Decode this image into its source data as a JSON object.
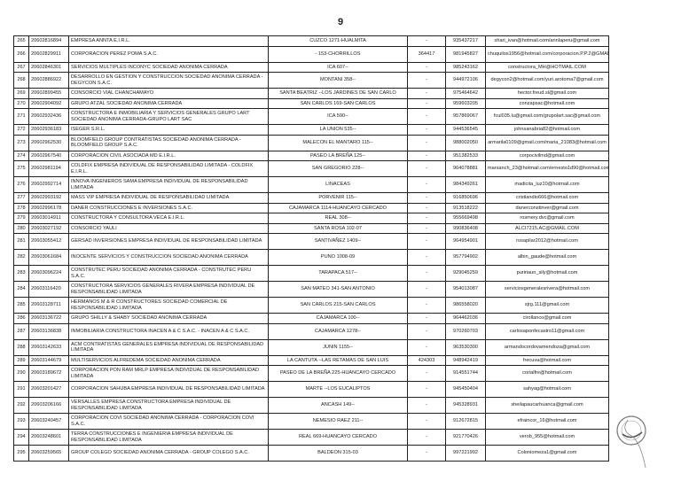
{
  "page_number": "9",
  "rows": [
    [
      "265",
      "20602816894",
      "EMPRESA ANNTA E.I.R.L.",
      "CUZCO 1271-HUALMITA",
      "-",
      "935437217",
      "shari_ivan@hotmail.com/annlaperu@gmail.com"
    ],
    [
      "266",
      "20602829911",
      "CORPORACION PEREZ POMA S.A.C.",
      "- 153-CHORRILLOS",
      "364417",
      "981945827",
      "chuquilos1956@hotmail.com/corporacion.P.P.2@GMAIL.COM"
    ],
    [
      "267",
      "20602846301",
      "SERVICIOS MULTIPLES INCONYC SOCIEDAD ANONIMA CERRADA",
      "ICA 607--",
      "-",
      "985243162",
      "constructora_MH@HOTMAIL.COM"
    ],
    [
      "268",
      "20602886922",
      "DESARROLLO EN GESTION Y CONSTRUCCION SOCIEDAD ANONIMA CERRADA - DEGYCON S.A.C.",
      "MONTANI 358--",
      "-",
      "944972106",
      "degycon2@hotmail.com/yuri.arotoma7@gmail.com"
    ],
    [
      "269",
      "20602899455",
      "CONSORCIO VIAL CHANCHAMAYO",
      "SANTA BEATRIZ --LOS JARDINES DE SAN CARLO",
      "-",
      "975464642",
      "hector.freud.sl@gmail.com"
    ],
    [
      "270",
      "20602904092",
      "GRUPO ATZAL SOCIEDAD ANONIMA CERRADA",
      "SAN CARLOS 169-SAN CARLOS",
      "-",
      "959603205",
      "conzapsac@hotmail.com"
    ],
    [
      "271",
      "20602932436",
      "CONSTRUCTORA E INMOBILIARIA Y SERVICIOS GENERALES GRUPO LART SOCIEDAD ANONIMA CERRADA-GRUPO LART SAC",
      "ICA 590--",
      "-",
      "957869067",
      "fcul035.lu@gmail.com/grupolart.sac@gmail.com"
    ],
    [
      "272",
      "20602936183",
      "ISEGER S.R.L.",
      "LA UNION 535--",
      "-",
      "944536545",
      "johnsanabria82@hotmail.com"
    ],
    [
      "273",
      "20602962530",
      "BLOOMFIELD GROUP CONTRATISTAS SOCIEDAD ANONIMA CERRADA - BLOOMFIELD GROUP S.A.C.",
      "MALECON EL MANTARO 115--",
      "-",
      "988002050",
      "armarila0109@gmail.com/maria_21083@hotmail.com"
    ],
    [
      "274",
      "20602967540",
      "CORPORACION CIVIL ASOCIADA MD E.I.R.L.",
      "PASEO LA BREÑA 125--",
      "-",
      "951382533",
      "corpocivilmd@gmail.com"
    ],
    [
      "275",
      "20602981194",
      "COLDFIX EMPRESA INDIVIDUAL DE RESPONSABILIDAD LIMITADA - COLDFIX E.I.R.L.",
      "SAN GREGORIO 228--",
      "-",
      "964078881",
      "marsanch_23@hotmail.com/ernesto1d90@hotmail.com"
    ],
    [
      "276",
      "20602992714",
      "INNOVA INGENIEROS SAMA EMPRESA INDIVIDUAL DE RESPONSABILIDAD LIMITADA",
      "LINACEAS",
      "-",
      "984349261",
      "madicita_luz10@hotmail.com"
    ],
    [
      "277",
      "20602993192",
      "MASS VIP EMPRESA INDIVIDUAL DE RESPONSABILIDAD LIMITADA",
      "PORVENIR 115--",
      "-",
      "916850696",
      "cristiandio666@hotmail.com"
    ],
    [
      "278",
      "20602996178",
      "DANER CONSTRUCCIONES E INVERSIONES S.A.C.",
      "CAJAMARCA 1114-HUANCAYO CERCADO",
      "-",
      "913518222",
      "danerconstinver@gmail.com"
    ],
    [
      "279",
      "20603014911",
      "CONSTRUCTORA Y CONSULTORA VECA E.I.R.L.",
      "REAL 308--",
      "-",
      "955669498",
      "rosmery.dvc@gmail.com"
    ],
    [
      "280",
      "20603027192",
      "CONSORCIO YAULI",
      "SANTA ROSA 102-07",
      "-",
      "990836408",
      "ALCI7215.AC@GMAIL.COM"
    ],
    [
      "281",
      "20603055412",
      "GERSAD INVERSIONES EMPRESA INDIVIDUAL DE RESPONSABILIDAD LIMITADA",
      "SANTIVAÑEZ 1409--",
      "-",
      "964954901",
      "rosapilar2012@hotmail.com"
    ],
    [
      "282",
      "20603061684",
      "INOCENTE SERVICIOS Y CONSTRUCCION SOCIEDAD ANONIMA CERRADA",
      "PUNO 1008-09",
      "-",
      "957794902",
      "albin_gaude@hotmail.com"
    ],
    [
      "283",
      "20603096224",
      "CONSTRUTEC PERU SOCIEDAD ANONIMA CERRADA - CONSTRUTEC PERU S.A.C.",
      "TARAPACA 517--",
      "-",
      "929045259",
      "puririaun_sily@hotmail.com"
    ],
    [
      "284",
      "20603116420",
      "CONSTRUCTORA SERVICIOS GENERALES RIVERA EMPRESA INDIVIDUAL DE RESPONSABILIDAD LIMITADA",
      "SAN MATEO 341-SAN ANTONIO",
      "-",
      "954013087",
      "serviciosgeneralesrivera@hotmail.com"
    ],
    [
      "285",
      "20603128711",
      "HERMANOS M & R CONSTRUCTORES SOCIEDAD COMERCIAL DE RESPONSABILIDAD LIMITADA",
      "SAN CARLOS 215-SAN CARLOS",
      "-",
      "986558020",
      "sjrg.111@gmail.com"
    ],
    [
      "286",
      "20603136722",
      "GRUPO SHILLY & SHABY SOCIEDAD ANONIMA CERRADA",
      "CAJAMARCA 100--",
      "-",
      "964462036",
      "cirollanco@gmail.com"
    ],
    [
      "287",
      "20603136838",
      "INMOBILIARIA CONSTRUCTORA INACEN A & C S.A.C. - INACEN A & C S.A.C.",
      "CAJAMARCA 1278--",
      "-",
      "970260703",
      "carlosaponfecastro11@gmail.com"
    ],
    [
      "288",
      "20603142633",
      "ACM CONTRATISTAS GENERALES EMPRESA INDIVIDUAL DE RESPONSABILIDAD LIMITADA",
      "JUNIN 1155--",
      "-",
      "963530300",
      "armandocordovamendoza@gmail.com"
    ],
    [
      "289",
      "20603144679",
      "MULTISERVICIOS ALFREDEMA SOCIEDAD ANONIMA CERRADA",
      "LA CANTUTA --LAS RETAMAS DE SAN LUIS",
      "424303",
      "948942419",
      "frecuva@hotmail.com"
    ],
    [
      "290",
      "20603189672",
      "CORPORACION PON RAM MRLP EMPRESA INDIVIDUAL DE RESPONSABILIDAD LIMITADA",
      "PASEO DE LA BREÑA 225-HUANCAYO CERCADO",
      "-",
      "914551744",
      "corialfre@hotmail.com"
    ],
    [
      "291",
      "20603201427",
      "CORPORACION SAHUBA EMPRESA INDIVIDUAL DE RESPONSABILIDAD LIMITADA",
      "MARTE --LOS EUCALIPTOS",
      "-",
      "945450404",
      "sahyag@hotmail.com"
    ],
    [
      "292",
      "20603206166",
      "VERSALLES EMPRESA CONSTRUCTORA EMPRESA INDIVIDUAL DE RESPONSABILIDAD LIMITADA",
      "ANCASH 149--",
      "-",
      "945328931",
      "sheilapaucarhuanca@gmail.com"
    ],
    [
      "293",
      "20603240457",
      "CORPORACION COVI SOCIEDAD ANONIMA CERRADA - CORPORACION COVI S.A.C.",
      "NEMESIO RAEZ 211--",
      "-",
      "912672815",
      "efraincor_16@hotmail.com"
    ],
    [
      "294",
      "20603248601",
      "TERRA CONSTRUCCIONES E INGENIERIA EMPRESA INDIVIDUAL DE RESPONSABILIDAD LIMITADA",
      "REAL 669-HUANCAYO CERCADO",
      "-",
      "921770426",
      "verob_955@hotmail.com"
    ],
    [
      "295",
      "20603259565",
      "GROUP COLEGO SOCIEDAD ANONIMA CERRADA - GROUP COLEGO S.A.C.",
      "BALDEON 315-03",
      "-",
      "997221992",
      "Coloniomeza1@gmail.com"
    ]
  ]
}
